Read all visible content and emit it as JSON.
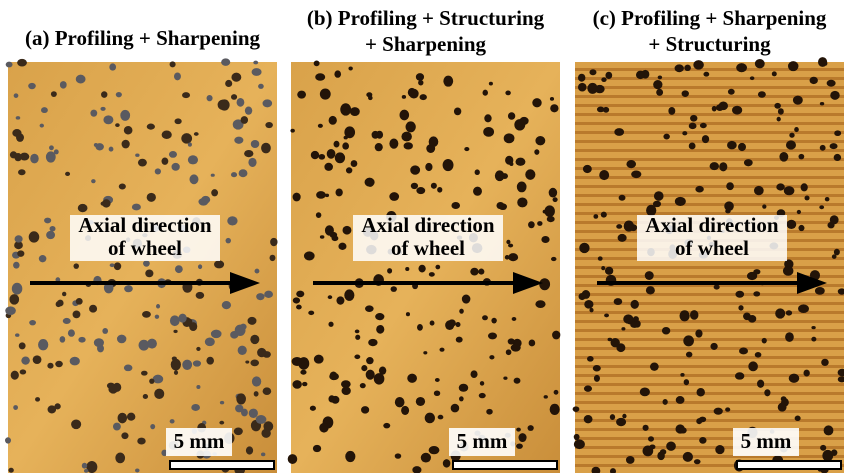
{
  "panels": [
    {
      "title": [
        "(a) Profiling + Sharpening"
      ],
      "arrow_label": [
        "Axial direction",
        "of wheel"
      ],
      "scale": "5 mm"
    },
    {
      "title": [
        "(b) Profiling + Structuring",
        "+ Sharpening"
      ],
      "arrow_label": [
        "Axial direction",
        "of wheel"
      ],
      "scale": "5 mm"
    },
    {
      "title": [
        "(c) Profiling + Sharpening",
        "+ Structuring"
      ],
      "arrow_label": [
        "Axial direction",
        "of wheel"
      ],
      "scale": "5 mm"
    }
  ]
}
